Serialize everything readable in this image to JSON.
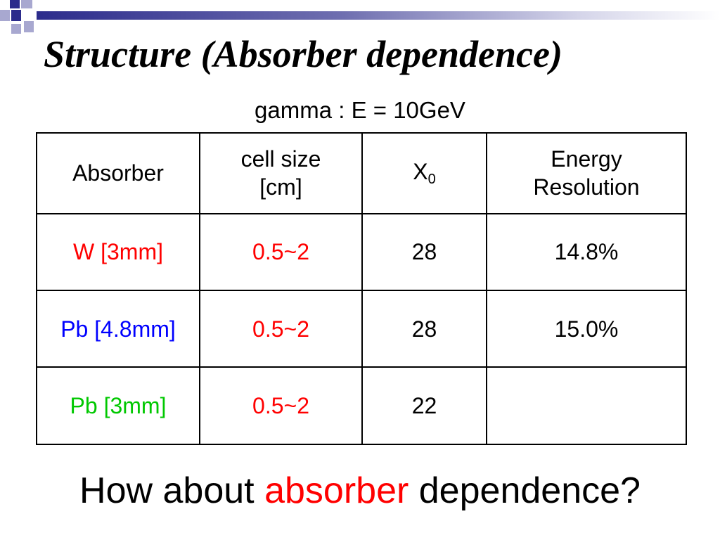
{
  "slide": {
    "title": "Structure (Absorber dependence)",
    "subtitle": "gamma : E = 10GeV"
  },
  "colors": {
    "deco_dark": "#2c2c8c",
    "deco_light": "#a8a8d0",
    "red": "#ff0000",
    "blue": "#0000ff",
    "green": "#00c800"
  },
  "table": {
    "headers": {
      "absorber": "Absorber",
      "cell_size_line1": "cell size",
      "cell_size_line2": "[cm]",
      "x0_main": "X",
      "x0_sub": "0",
      "energy_line1": "Energy",
      "energy_line2": "Resolution"
    },
    "rows": [
      {
        "absorber": "W [3mm]",
        "absorber_color": "red",
        "cell_size": "0.5~2",
        "x0": "28",
        "energy_resolution": "14.8%"
      },
      {
        "absorber": "Pb [4.8mm]",
        "absorber_color": "blue",
        "cell_size": "0.5~2",
        "x0": "28",
        "energy_resolution": "15.0%"
      },
      {
        "absorber": "Pb [3mm]",
        "absorber_color": "green",
        "cell_size": "0.5~2",
        "x0": "22",
        "energy_resolution": ""
      }
    ]
  },
  "question": {
    "prefix": "How about ",
    "highlight": "absorber",
    "suffix": " dependence?"
  }
}
